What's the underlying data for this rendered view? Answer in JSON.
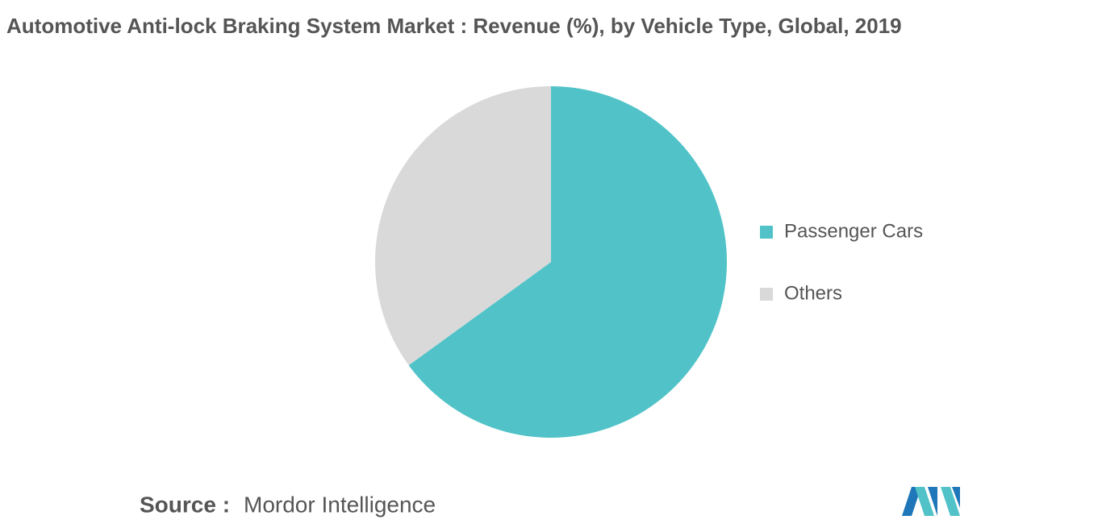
{
  "chart_data": {
    "type": "pie",
    "title": "Automotive Anti-lock Braking System Market : Revenue (%), by Vehicle Type, Global, 2019",
    "categories": [
      "Passenger Cars",
      "Others"
    ],
    "values": [
      65,
      35
    ],
    "colors": [
      "#51c3c8",
      "#d9d9d9"
    ],
    "legend": "right",
    "source_label": "Source :",
    "source": "Mordor Intelligence"
  }
}
